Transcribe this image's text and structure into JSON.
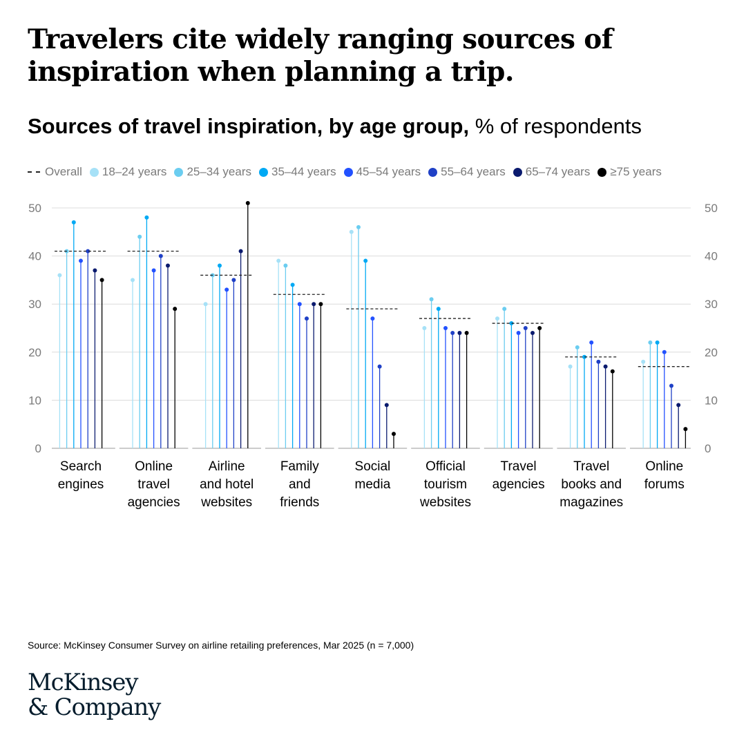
{
  "title": "Travelers cite widely ranging sources of inspiration when planning a trip.",
  "subtitle": {
    "bold": "Sources of travel inspiration, by age group,",
    "normal": " % of respondents"
  },
  "source": "Source: McKinsey Consumer Survey on airline retailing preferences, Mar 2025 (n = 7,000)",
  "logo": {
    "line1": "McKinsey",
    "line2": "& Company"
  },
  "legend": {
    "overall_label": "Overall",
    "items": [
      {
        "label": "18–24 years",
        "color": "#a6e1f7"
      },
      {
        "label": "25–34 years",
        "color": "#6bcdf0"
      },
      {
        "label": "35–44 years",
        "color": "#00a9f4"
      },
      {
        "label": "45–54 years",
        "color": "#2251ff"
      },
      {
        "label": "55–64 years",
        "color": "#1f40c6"
      },
      {
        "label": "65–74 years",
        "color": "#0a1a6e"
      },
      {
        "label": "≥75 years",
        "color": "#000000"
      }
    ]
  },
  "chart_data": {
    "type": "lollipop",
    "ylim": [
      0,
      50
    ],
    "yticks": [
      0,
      10,
      20,
      30,
      40,
      50
    ],
    "grid": true,
    "legend_position": "top",
    "series_names": [
      "18–24 years",
      "25–34 years",
      "35–44 years",
      "45–54 years",
      "55–64 years",
      "65–74 years",
      "≥75 years"
    ],
    "categories": [
      {
        "label": [
          "Search",
          "engines"
        ],
        "overall": 41,
        "values": [
          36,
          41,
          47,
          39,
          41,
          37,
          35
        ]
      },
      {
        "label": [
          "Online",
          "travel",
          "agencies"
        ],
        "overall": 41,
        "values": [
          35,
          44,
          48,
          37,
          40,
          38,
          29
        ]
      },
      {
        "label": [
          "Airline",
          "and hotel",
          "websites"
        ],
        "overall": 36,
        "values": [
          30,
          36,
          38,
          33,
          35,
          41,
          51
        ]
      },
      {
        "label": [
          "Family",
          "and",
          "friends"
        ],
        "overall": 32,
        "values": [
          39,
          38,
          34,
          30,
          27,
          30,
          30
        ]
      },
      {
        "label": [
          "Social",
          "media"
        ],
        "overall": 29,
        "values": [
          45,
          46,
          39,
          27,
          17,
          9,
          3
        ]
      },
      {
        "label": [
          "Official",
          "tourism",
          "websites"
        ],
        "overall": 27,
        "values": [
          25,
          31,
          29,
          25,
          24,
          24,
          24
        ]
      },
      {
        "label": [
          "Travel",
          "agencies"
        ],
        "overall": 26,
        "values": [
          27,
          29,
          26,
          24,
          25,
          24,
          25
        ]
      },
      {
        "label": [
          "Travel",
          "books and",
          "magazines"
        ],
        "overall": 19,
        "values": [
          17,
          21,
          19,
          22,
          18,
          17,
          16
        ]
      },
      {
        "label": [
          "Online",
          "forums"
        ],
        "overall": 17,
        "values": [
          18,
          22,
          22,
          20,
          13,
          9,
          4
        ]
      }
    ]
  }
}
